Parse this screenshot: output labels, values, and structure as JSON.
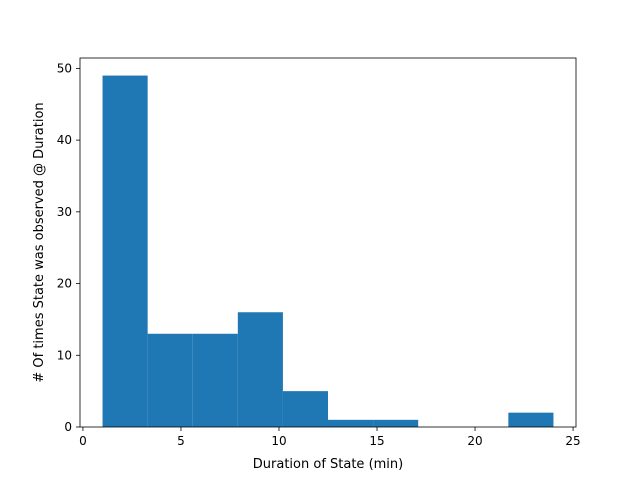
{
  "chart_data": {
    "type": "bar",
    "subtype": "histogram",
    "bins": [
      {
        "x0": 1.0,
        "x1": 3.3,
        "count": 49
      },
      {
        "x0": 3.3,
        "x1": 5.6,
        "count": 13
      },
      {
        "x0": 5.6,
        "x1": 7.9,
        "count": 13
      },
      {
        "x0": 7.9,
        "x1": 10.2,
        "count": 16
      },
      {
        "x0": 10.2,
        "x1": 12.5,
        "count": 5
      },
      {
        "x0": 12.5,
        "x1": 14.8,
        "count": 1
      },
      {
        "x0": 14.8,
        "x1": 17.1,
        "count": 1
      },
      {
        "x0": 17.1,
        "x1": 19.4,
        "count": 0
      },
      {
        "x0": 19.4,
        "x1": 21.7,
        "count": 0
      },
      {
        "x0": 21.7,
        "x1": 24.0,
        "count": 2
      }
    ],
    "xlabel": "Duration of State (min)",
    "ylabel": "# Of times State was observed @ Duration",
    "xlim": [
      -0.15,
      25.15
    ],
    "ylim": [
      0,
      51.45
    ],
    "xticks": [
      0,
      5,
      10,
      15,
      20,
      25
    ],
    "yticks": [
      0,
      10,
      20,
      30,
      40,
      50
    ],
    "color": "#1f77b4",
    "grid": false
  }
}
